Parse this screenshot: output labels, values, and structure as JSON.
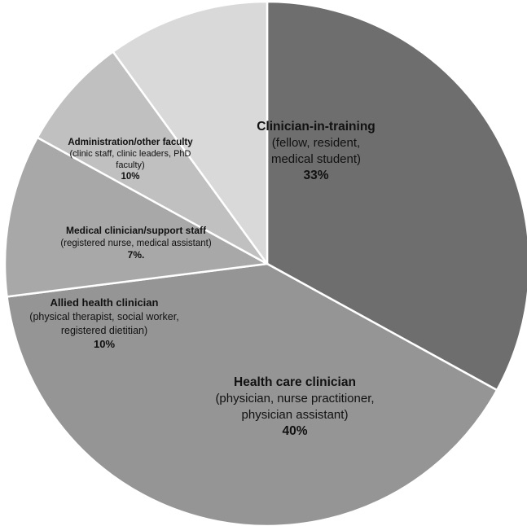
{
  "chart_data": {
    "type": "pie",
    "title": "",
    "start_angle_deg": 90,
    "direction": "clockwise",
    "slices": [
      {
        "category": "Clinician-in-training",
        "description": [
          "(fellow, resident,",
          "medical student)"
        ],
        "percent_label": "33%",
        "value": 33,
        "color": "#6e6e6e"
      },
      {
        "category": "Health care clinician",
        "description": [
          "(physician, nurse practitioner,",
          "physician assistant)"
        ],
        "percent_label": "40%",
        "value": 40,
        "color": "#959595"
      },
      {
        "category": "Allied health clinician",
        "description": [
          "(physical therapist, social worker,",
          "registered dietitian)"
        ],
        "percent_label": "10%",
        "value": 10,
        "color": "#a8a8a8"
      },
      {
        "category": "Medical clinician/support staff",
        "description": [
          "(registered nurse, medical assistant)"
        ],
        "percent_label": "7%.",
        "value": 7,
        "color": "#c0c0c0"
      },
      {
        "category": "Administration/other faculty",
        "description": [
          "(clinic staff, clinic leaders, PhD",
          "faculty)"
        ],
        "percent_label": "10%",
        "value": 10,
        "color": "#d9d9d9"
      }
    ]
  }
}
